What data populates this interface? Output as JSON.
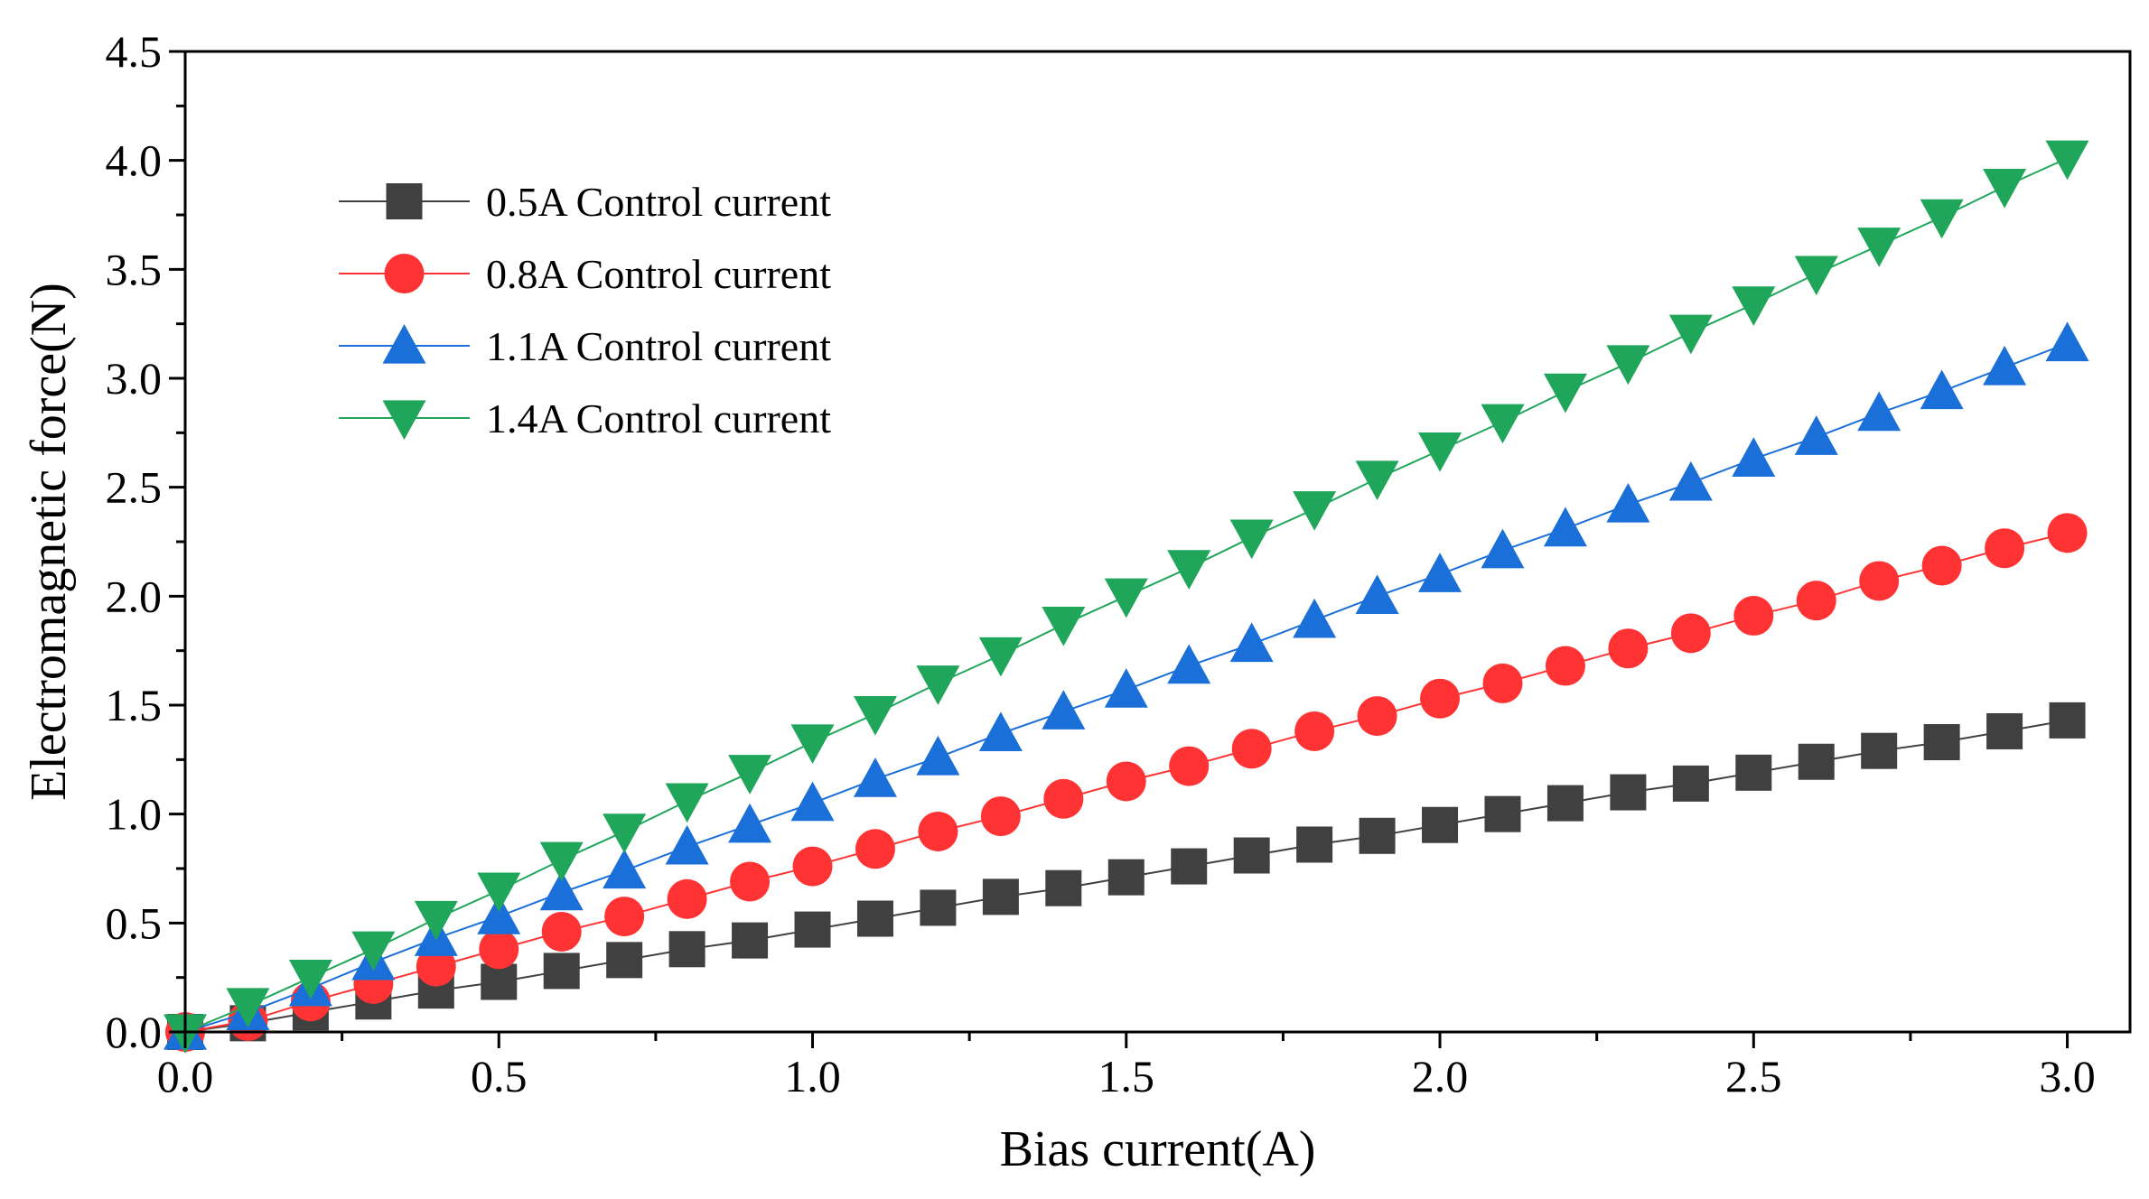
{
  "chart_data": {
    "type": "line",
    "title": "",
    "xlabel": "Bias current(A)",
    "ylabel": "Electromagnetic force(N)",
    "xlim": [
      0,
      3.1
    ],
    "ylim": [
      0,
      4.5
    ],
    "xticks": [
      "0.0",
      "0.5",
      "1.0",
      "1.5",
      "2.0",
      "2.5",
      "3.0"
    ],
    "yticks": [
      "0.0",
      "0.5",
      "1.0",
      "1.5",
      "2.0",
      "2.5",
      "3.0",
      "3.5",
      "4.0",
      "4.5"
    ],
    "x": [
      0.0,
      0.1,
      0.2,
      0.3,
      0.4,
      0.5,
      0.6,
      0.7,
      0.8,
      0.9,
      1.0,
      1.1,
      1.2,
      1.3,
      1.4,
      1.5,
      1.6,
      1.7,
      1.8,
      1.9,
      2.0,
      2.1,
      2.2,
      2.3,
      2.4,
      2.5,
      2.6,
      2.7,
      2.8,
      2.9,
      3.0
    ],
    "legend_position": "top-left",
    "series": [
      {
        "name": "0.5A Control current",
        "marker": "square",
        "color": "#404040",
        "values": [
          0.0,
          0.04,
          0.09,
          0.14,
          0.19,
          0.23,
          0.28,
          0.33,
          0.38,
          0.42,
          0.47,
          0.52,
          0.57,
          0.62,
          0.66,
          0.71,
          0.76,
          0.81,
          0.86,
          0.9,
          0.95,
          1.0,
          1.05,
          1.1,
          1.14,
          1.19,
          1.24,
          1.29,
          1.33,
          1.38,
          1.43
        ]
      },
      {
        "name": "0.8A Control current",
        "marker": "circle",
        "color": "#ff3333",
        "values": [
          0.0,
          0.05,
          0.14,
          0.22,
          0.3,
          0.38,
          0.46,
          0.53,
          0.61,
          0.69,
          0.76,
          0.84,
          0.92,
          0.99,
          1.07,
          1.15,
          1.22,
          1.3,
          1.38,
          1.45,
          1.53,
          1.6,
          1.68,
          1.76,
          1.83,
          1.91,
          1.98,
          2.07,
          2.14,
          2.22,
          2.29
        ]
      },
      {
        "name": "1.1A Control current",
        "marker": "triangle-up",
        "color": "#1a6fd9",
        "values": [
          0.0,
          0.09,
          0.2,
          0.32,
          0.43,
          0.53,
          0.64,
          0.74,
          0.85,
          0.95,
          1.05,
          1.16,
          1.26,
          1.37,
          1.47,
          1.57,
          1.68,
          1.78,
          1.89,
          2.0,
          2.1,
          2.21,
          2.31,
          2.42,
          2.52,
          2.63,
          2.73,
          2.84,
          2.94,
          3.05,
          3.16
        ]
      },
      {
        "name": "1.4A Control current",
        "marker": "triangle-down",
        "color": "#1fa65a",
        "values": [
          0.0,
          0.12,
          0.25,
          0.38,
          0.52,
          0.65,
          0.79,
          0.92,
          1.06,
          1.19,
          1.33,
          1.46,
          1.6,
          1.73,
          1.87,
          2.0,
          2.13,
          2.27,
          2.4,
          2.54,
          2.67,
          2.8,
          2.94,
          3.07,
          3.21,
          3.34,
          3.48,
          3.61,
          3.74,
          3.88,
          4.01
        ]
      }
    ]
  }
}
